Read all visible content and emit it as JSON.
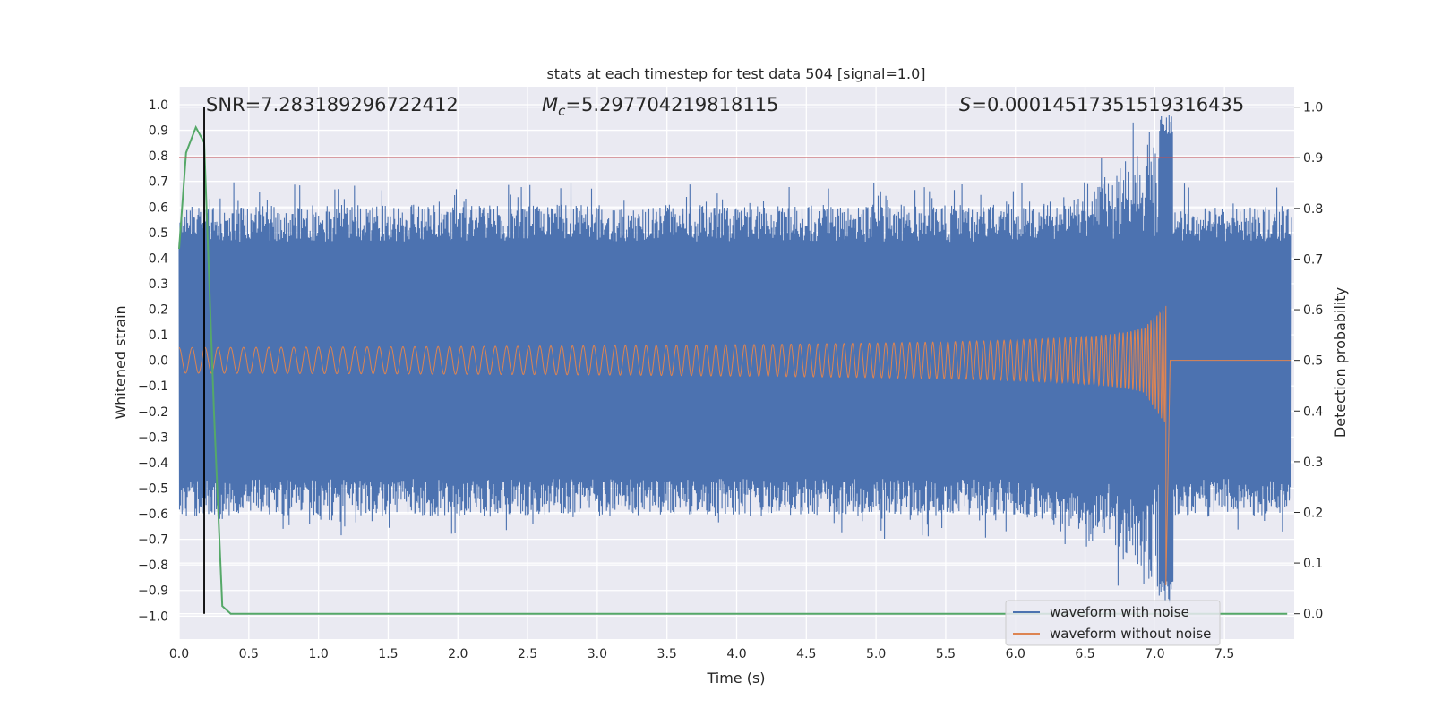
{
  "chart_data": {
    "type": "line",
    "title": "stats at each timestep for test data 504 [signal=1.0]",
    "xlabel": "Time (s)",
    "ylabel": "Whitened strain",
    "y2label": "Detection probability",
    "xlim": [
      0.0,
      8.0
    ],
    "ylim": [
      -1.09,
      1.07
    ],
    "y2lim": [
      -0.05,
      1.04
    ],
    "x_ticks": [
      "0.0",
      "0.5",
      "1.0",
      "1.5",
      "2.0",
      "2.5",
      "3.0",
      "3.5",
      "4.0",
      "4.5",
      "5.0",
      "5.5",
      "6.0",
      "6.5",
      "7.0",
      "7.5"
    ],
    "y_ticks": [
      "1.0",
      "0.9",
      "0.8",
      "0.7",
      "0.6",
      "0.5",
      "0.4",
      "0.3",
      "0.2",
      "0.1",
      "0.0",
      "−0.1",
      "−0.2",
      "−0.3",
      "−0.4",
      "−0.5",
      "−0.6",
      "−0.7",
      "−0.8",
      "−0.9",
      "−1.0"
    ],
    "y2_ticks": [
      "1.0",
      "0.9",
      "0.8",
      "0.7",
      "0.6",
      "0.5",
      "0.4",
      "0.3",
      "0.2",
      "0.1",
      "0.0"
    ],
    "grid": true,
    "legend_position": "lower-right",
    "annotations": {
      "snr_text": "SNR=7.283189296722412",
      "mc_prefix": "M",
      "mc_sub": "c",
      "mc_value": "=5.297704219818115",
      "s_prefix": "S",
      "s_value": "=0.00014517351519316435"
    },
    "series": [
      {
        "name": "waveform with noise",
        "color": "#4c72b0",
        "kind": "noisy strain",
        "noise_amplitude": 0.58,
        "merger_time": 7.08,
        "merger_peak": 0.97,
        "merger_trough": -0.95
      },
      {
        "name": "waveform without noise",
        "color": "#dd8452",
        "kind": "chirp",
        "start_amplitude": 0.05,
        "peak_amplitude_upper": 0.62,
        "peak_amplitude_lower": -0.88,
        "merger_time": 7.08,
        "post_merger_level": 0.0
      },
      {
        "name": "",
        "axis": "right",
        "color": "#55a868",
        "x": [
          0.0,
          0.05,
          0.12,
          0.18,
          0.21,
          0.25,
          0.31,
          0.37,
          0.5,
          1.0,
          2.0,
          3.0,
          4.0,
          5.0,
          6.0,
          7.0,
          7.95
        ],
        "y": [
          0.72,
          0.91,
          0.96,
          0.93,
          0.7,
          0.4,
          0.015,
          0.0,
          0.0,
          0.0,
          0.0,
          0.0,
          0.0,
          0.0,
          0.0,
          0.0,
          0.0
        ]
      }
    ],
    "threshold": {
      "axis": "right",
      "y": 0.9,
      "color": "#c44e52"
    },
    "vertical_marker": {
      "x": 0.18,
      "color": "#000000"
    }
  }
}
